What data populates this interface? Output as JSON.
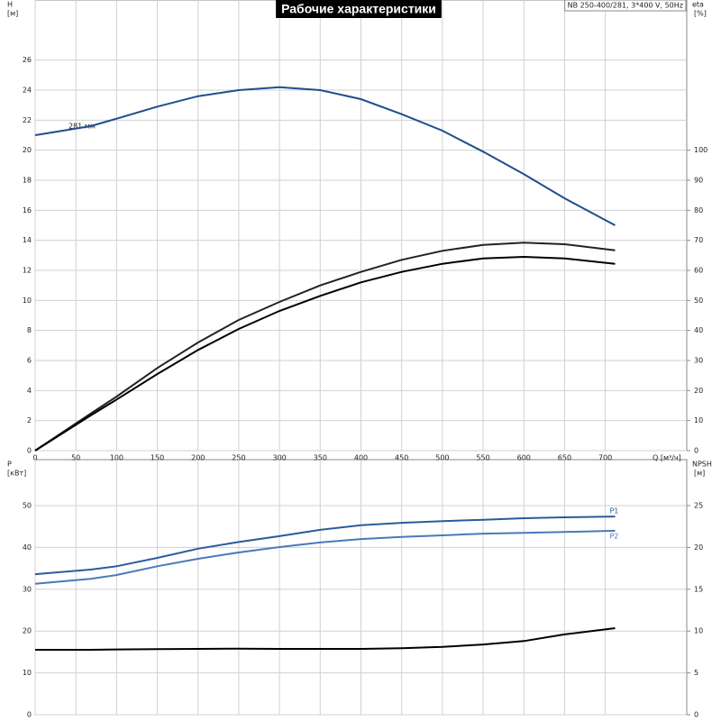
{
  "chart_data": [
    {
      "type": "line",
      "title": "Рабочие характеристики",
      "subtitle": "NB 250-400/281, 3*400 V, 50Hz",
      "ylabel": "H",
      "ylabel_unit": "[м]",
      "y2label": "eta",
      "y2label_unit": "[%]",
      "xlabel": "Q [м³/ч]",
      "annotations": [
        "281 мм"
      ],
      "x": [
        0,
        68,
        100,
        150,
        200,
        250,
        300,
        350,
        400,
        450,
        500,
        550,
        600,
        650,
        712
      ],
      "series": [
        {
          "color": "#1f4e8c",
          "axis": "y",
          "values": [
            21.0,
            21.6,
            22.1,
            22.9,
            23.6,
            24.0,
            24.2,
            24.0,
            23.4,
            22.4,
            21.3,
            19.9,
            18.4,
            16.8,
            15.0
          ]
        },
        {
          "color": "#222222",
          "axis": "y2",
          "values": [
            0,
            12.3,
            18,
            27.5,
            36,
            43.5,
            49.5,
            55,
            59.5,
            63.5,
            66.5,
            68.5,
            69.2,
            68.7,
            66.7
          ]
        },
        {
          "color": "#000000",
          "axis": "y2",
          "values": [
            0,
            11.7,
            17,
            25.5,
            33.5,
            40.5,
            46.5,
            51.5,
            56,
            59.5,
            62.2,
            64,
            64.5,
            64,
            62.2
          ]
        }
      ],
      "xlim": [
        0,
        800
      ],
      "xticks": [
        0,
        50,
        100,
        150,
        200,
        250,
        300,
        350,
        400,
        450,
        500,
        550,
        600,
        650,
        700
      ],
      "ylim": [
        0,
        30
      ],
      "yticks": [
        0,
        2,
        4,
        6,
        8,
        10,
        12,
        14,
        16,
        18,
        20,
        22,
        24,
        26
      ],
      "y2lim": [
        0,
        150
      ],
      "y2ticks": [
        0,
        10,
        20,
        30,
        40,
        50,
        60,
        70,
        80,
        90,
        100
      ],
      "grid": true
    },
    {
      "type": "line",
      "ylabel": "P",
      "ylabel_unit": "[кВт]",
      "y2label": "NPSH",
      "y2label_unit": "[м]",
      "x": [
        0,
        68,
        100,
        150,
        200,
        250,
        300,
        350,
        400,
        450,
        500,
        550,
        600,
        650,
        712
      ],
      "series": [
        {
          "name": "P1",
          "color": "#2a5c9a",
          "axis": "y",
          "values": [
            33.6,
            34.7,
            35.5,
            37.5,
            39.7,
            41.3,
            42.7,
            44.2,
            45.3,
            45.9,
            46.3,
            46.6,
            47.0,
            47.2,
            47.4
          ]
        },
        {
          "name": "P2",
          "color": "#4a7ab8",
          "axis": "y",
          "values": [
            31.3,
            32.5,
            33.4,
            35.5,
            37.3,
            38.8,
            40.1,
            41.2,
            42.0,
            42.5,
            42.9,
            43.3,
            43.5,
            43.7,
            44.0
          ]
        },
        {
          "color": "#000000",
          "axis": "y2",
          "values": [
            7.76,
            7.76,
            7.8,
            7.85,
            7.87,
            7.9,
            7.87,
            7.87,
            7.87,
            7.95,
            8.1,
            8.4,
            8.8,
            9.6,
            10.35
          ]
        }
      ],
      "xlim": [
        0,
        800
      ],
      "xticks": [
        0,
        50,
        100,
        150,
        200,
        250,
        300,
        350,
        400,
        450,
        500,
        550,
        600,
        650,
        700
      ],
      "ylim": [
        0,
        61
      ],
      "yticks": [
        0,
        10,
        20,
        30,
        40,
        50
      ],
      "y2lim": [
        0,
        30.5
      ],
      "y2ticks": [
        0,
        5,
        10,
        15,
        20,
        25
      ],
      "grid": true
    }
  ]
}
